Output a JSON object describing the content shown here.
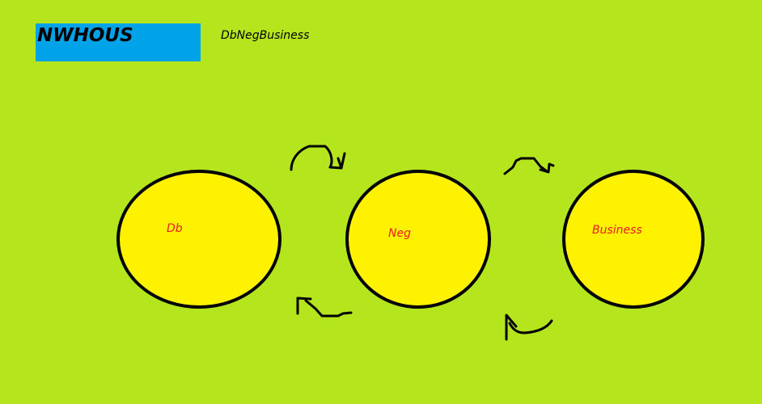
{
  "header": {
    "logo_text": "NWHOUS",
    "subtitle": "DbNegBusiness"
  },
  "diagram": {
    "nodes": [
      {
        "id": "db",
        "label": "Db"
      },
      {
        "id": "neg",
        "label": "Neg"
      },
      {
        "id": "business",
        "label": "Business"
      }
    ],
    "edges": [
      {
        "from": "db",
        "to": "neg"
      },
      {
        "from": "neg",
        "to": "business"
      },
      {
        "from": "business",
        "to": "neg"
      },
      {
        "from": "neg",
        "to": "db"
      }
    ]
  },
  "colors": {
    "background": "#b5e61d",
    "logo_box": "#00a2e8",
    "node_fill": "#fff200",
    "node_stroke": "#000000",
    "node_label": "#ed1c24",
    "arrow": "#000000"
  }
}
